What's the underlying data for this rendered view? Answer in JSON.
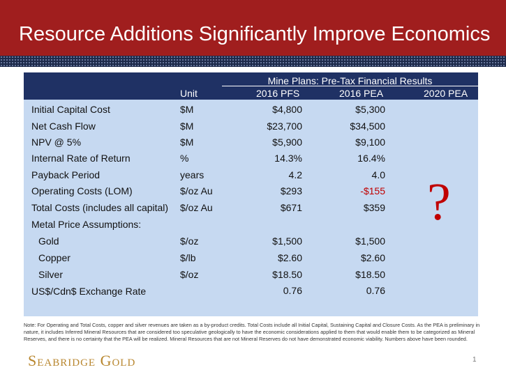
{
  "slide": {
    "title": "Resource Additions Significantly Improve Economics",
    "page_number": "1",
    "logo": "Seabridge Gold",
    "note": "Note: For Operating and Total Costs, copper and silver revenues are taken as a by-product credits. Total Costs include all Initial Capital, Sustaining Capital and Closure Costs. As the PEA is preliminary in nature, it includes Inferred Mineral Resources that are considered too speculative geologically to have the economic considerations applied to them that would enable them to be categorized as Mineral Reserves, and there is no certainty that the PEA will be realized. Mineral Resources that are not Mineral Reserves do not have demonstrated economic viability. Numbers above have been rounded."
  },
  "table": {
    "group_header": "Mine Plans: Pre-Tax Financial Results",
    "columns": {
      "unit": "Unit",
      "pfs2016": "2016 PFS",
      "pea2016": "2016 PEA",
      "pea2020": "2020 PEA"
    },
    "pea2020_placeholder": "?",
    "rows": [
      {
        "label": "Initial Capital Cost",
        "unit": "$M",
        "pfs": "$4,800",
        "pea": "$5,300"
      },
      {
        "label": "Net Cash Flow",
        "unit": "$M",
        "pfs": "$23,700",
        "pea": "$34,500"
      },
      {
        "label": "NPV @ 5%",
        "unit": "$M",
        "pfs": "$5,900",
        "pea": "$9,100"
      },
      {
        "label": "Internal Rate of Return",
        "unit": "%",
        "pfs": "14.3%",
        "pea": "16.4%"
      },
      {
        "label": "Payback Period",
        "unit": "years",
        "pfs": "4.2",
        "pea": "4.0"
      },
      {
        "label": "Operating Costs (LOM)",
        "unit": "$/oz Au",
        "pfs": "$293",
        "pea": "-$155"
      },
      {
        "label": "Total Costs (includes all capital)",
        "unit": "$/oz Au",
        "pfs": "$671",
        "pea": "$359"
      },
      {
        "label": "Metal Price Assumptions:",
        "unit": "",
        "pfs": "",
        "pea": ""
      },
      {
        "label": "Gold",
        "unit": "$/oz",
        "pfs": "$1,500",
        "pea": "$1,500"
      },
      {
        "label": "Copper",
        "unit": "$/lb",
        "pfs": "$2.60",
        "pea": "$2.60"
      },
      {
        "label": "Silver",
        "unit": "$/oz",
        "pfs": "$18.50",
        "pea": "$18.50"
      },
      {
        "label": "US$/Cdn$ Exchange Rate",
        "unit": "",
        "pfs": "0.76",
        "pea": "0.76"
      }
    ]
  },
  "colors": {
    "title_bar": "#a01e1e",
    "header": "#1f3164",
    "table_bg": "#c6d9f1",
    "negative": "#c00000",
    "logo": "#b8862e"
  }
}
